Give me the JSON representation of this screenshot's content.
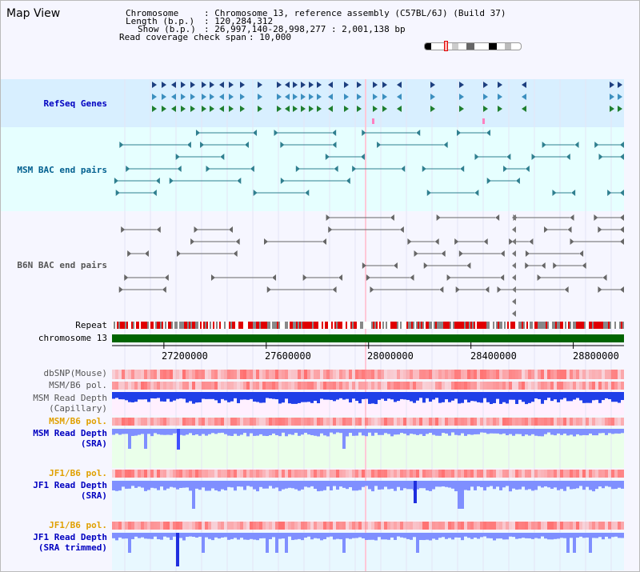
{
  "title": "Map View",
  "info": {
    "chromosome_label": "Chromosome",
    "chromosome_value": ": Chromosome 13, reference assembly (C57BL/6J) (Build 37)",
    "length_label": "Length (b.p.)",
    "length_value": ": 120,284,312",
    "show_label": "Show (b.p.)",
    "show_value": ": 26,997,140-28,998,277 : 2,001,138 bp",
    "coverage_label": "Read coverage check span",
    "coverage_value": ": 10,000"
  },
  "tracks": [
    {
      "id": "refseq",
      "label": "RefSeq Genes",
      "color": "#0000c0"
    },
    {
      "id": "msm-bac",
      "label": "MSM BAC end pairs",
      "color": "#005f8f"
    },
    {
      "id": "b6n-bac",
      "label": "B6N BAC end pairs",
      "color": "#555555"
    },
    {
      "id": "repeat",
      "label": "Repeat",
      "color": "#000000"
    },
    {
      "id": "chrom",
      "label": "chromosome 13",
      "color": "#000000"
    },
    {
      "id": "dbsnp",
      "label": "dbSNP(Mouse)",
      "color": "#555555"
    },
    {
      "id": "msm-b6-pol",
      "label": "MSM/B6 pol.",
      "color": "#555555"
    },
    {
      "id": "msm-depth-cap",
      "label": "MSM Read Depth",
      "label2": "(Capillary)",
      "color": "#555555"
    },
    {
      "id": "msm-b6-pol-2",
      "label": "MSM/B6 pol.",
      "color": "#e0a000"
    },
    {
      "id": "msm-depth-sra",
      "label": "MSM Read Depth",
      "label2": "(SRA)",
      "color": "#0000c0"
    },
    {
      "id": "jf1-b6-pol",
      "label": "JF1/B6 pol.",
      "color": "#e0a000"
    },
    {
      "id": "jf1-depth-sra",
      "label": "JF1 Read Depth",
      "label2": "(SRA)",
      "color": "#0000c0"
    },
    {
      "id": "jf1-b6-pol-2",
      "label": "JF1/B6 pol.",
      "color": "#e0a000"
    },
    {
      "id": "jf1-depth-trim",
      "label": "JF1 Read Depth",
      "label2": "(SRA trimmed)",
      "color": "#0000c0"
    }
  ],
  "axis": {
    "start": 26997140,
    "end": 28998277,
    "ticks": [
      {
        "pos": 27200000,
        "label": "27200000"
      },
      {
        "pos": 27600000,
        "label": "27600000"
      },
      {
        "pos": 28000000,
        "label": "28000000"
      },
      {
        "pos": 28400000,
        "label": "28400000"
      },
      {
        "pos": 28800000,
        "label": "28800000"
      }
    ]
  },
  "colors": {
    "refseq_bg": "#d8efff",
    "msm_bg": "#e6ffff",
    "b6n_bg": "#f8f8ff",
    "chrom_bar": "#006400",
    "repeat_red": "#e00000",
    "repeat_gray": "#888888",
    "pol_red": "#ff7070",
    "depth_blue": "#1f3fe8",
    "sra_blue": "#7f8fff"
  }
}
